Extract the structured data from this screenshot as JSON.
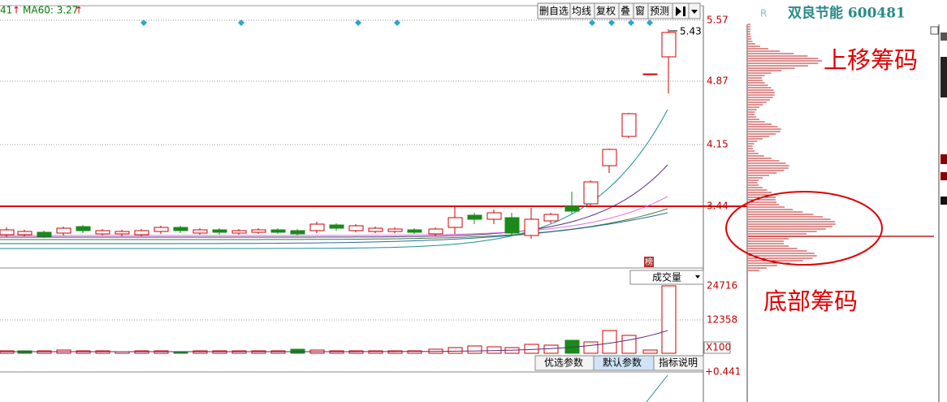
{
  "indicator_bar": {
    "ma_prev": "41",
    "ma_prev_arrow": "↑",
    "ma60": "MA60: 3.27",
    "ma60_arrow": "↑"
  },
  "toolbar": {
    "buttons": [
      "删自选",
      "均线",
      "复权",
      "叠",
      "窗",
      "预测"
    ]
  },
  "stock_header": {
    "flag": "R",
    "title": "双良节能 600481"
  },
  "price_axis": {
    "labels": [
      "5.57",
      "4.87",
      "4.15",
      "3.44"
    ]
  },
  "high_label": "5.43",
  "badge": "榜",
  "volume_panel": {
    "title": "成交量",
    "axis_labels": [
      "24716",
      "12358"
    ],
    "unit": "X100"
  },
  "param_buttons": [
    "优选参数",
    "默认参数",
    "指标说明"
  ],
  "indicator_axis_label": "+0.441",
  "annotations": {
    "upper": "上移筹码",
    "bottom": "底部筹码"
  }
}
